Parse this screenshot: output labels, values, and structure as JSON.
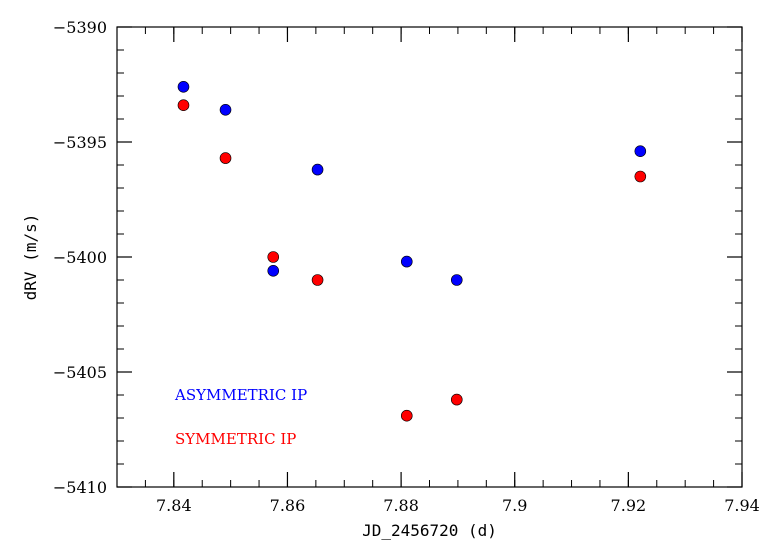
{
  "chart_data": {
    "type": "scatter",
    "xlabel": "JD_2456720 (d)",
    "ylabel": "dRV (m/s)",
    "xlim": [
      7.83,
      7.94
    ],
    "ylim": [
      -5410,
      -5390
    ],
    "x_ticks": [
      7.84,
      7.86,
      7.88,
      7.9,
      7.92,
      7.94
    ],
    "x_tick_labels": [
      "7.84",
      "7.86",
      "7.88",
      "7.9",
      "7.92",
      "7.94"
    ],
    "y_ticks": [
      -5410,
      -5405,
      -5400,
      -5395,
      -5390
    ],
    "y_tick_labels": [
      "−5410",
      "−5405",
      "−5400",
      "−5395",
      "−5390"
    ],
    "grid": false,
    "legend_position": "lower-left",
    "series": [
      {
        "name": "ASYMMETRIC IP",
        "color": "#0000ff",
        "x": [
          7.8417,
          7.8491,
          7.8575,
          7.8653,
          7.881,
          7.8898,
          7.9221
        ],
        "y": [
          -5392.6,
          -5393.6,
          -5400.6,
          -5396.2,
          -5400.2,
          -5401.0,
          -5395.4
        ]
      },
      {
        "name": "SYMMETRIC IP",
        "color": "#ff0000",
        "x": [
          7.8417,
          7.8491,
          7.8575,
          7.8653,
          7.881,
          7.8898,
          7.9221
        ],
        "y": [
          -5393.4,
          -5395.7,
          -5400.0,
          -5401.0,
          -5406.9,
          -5406.2,
          -5396.5
        ]
      }
    ]
  }
}
